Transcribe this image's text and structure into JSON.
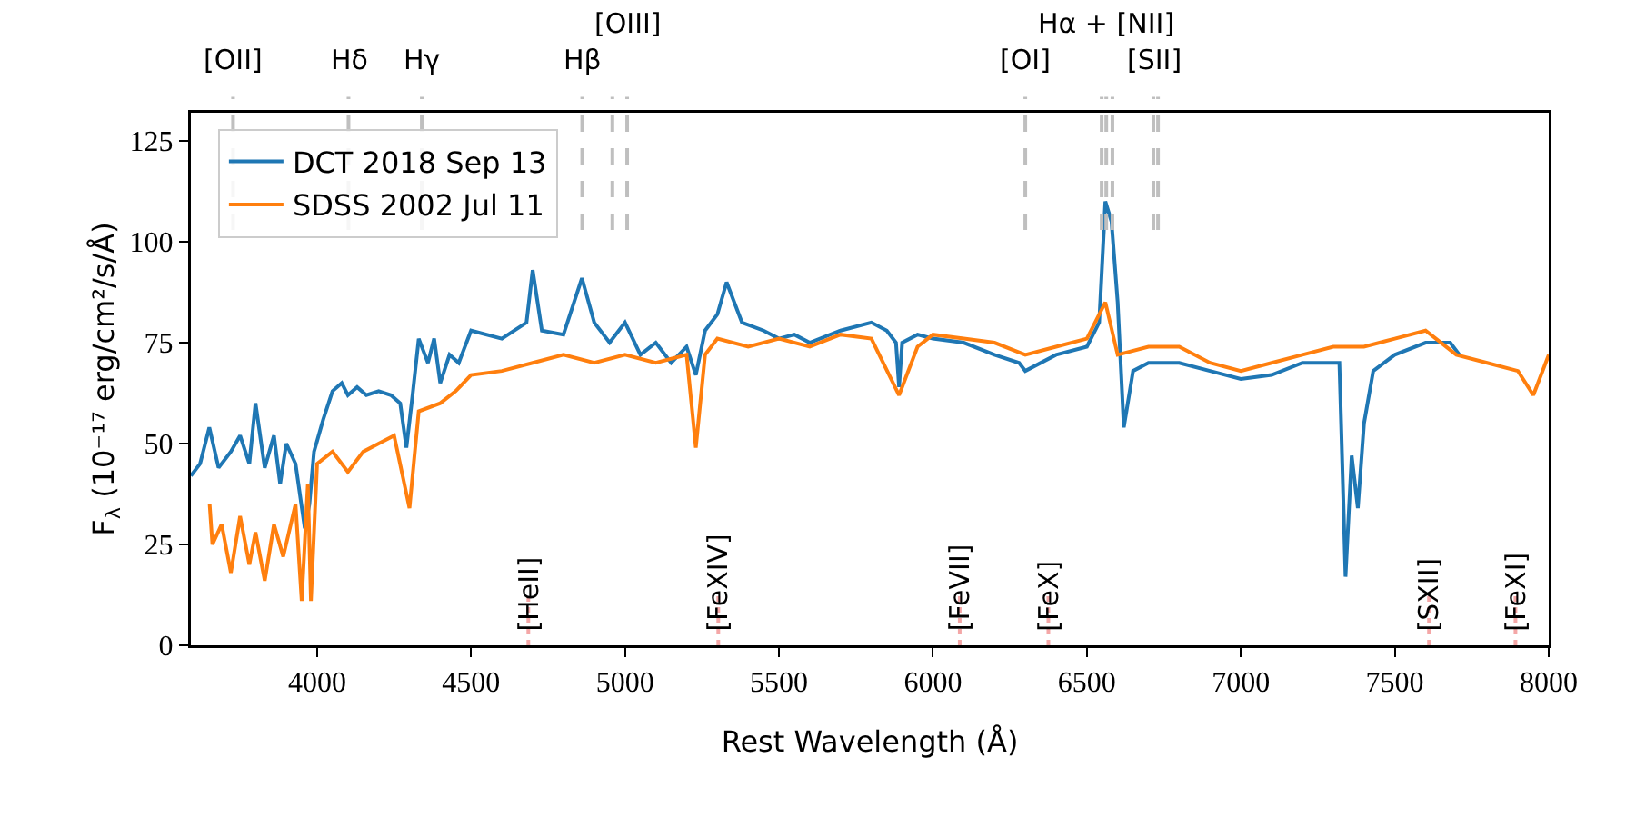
{
  "chart_data": {
    "type": "line",
    "xlabel": "Rest Wavelength (Å)",
    "ylabel": "F$_{λ}$ (10⁻¹⁷ erg/cm²/s/Å)",
    "xlim": [
      3590,
      8000
    ],
    "xticks": [
      4000,
      4500,
      5000,
      5500,
      6000,
      6500,
      7000,
      7500,
      8000
    ],
    "ylim": [
      0,
      132
    ],
    "yticks": [
      0,
      25,
      50,
      75,
      100,
      125
    ],
    "grid": false,
    "legend": "top left",
    "series": [
      {
        "name": "DCT 2018 Sep 13",
        "color": "#1f77b4",
        "x": [
          3590,
          3620,
          3650,
          3680,
          3720,
          3750,
          3780,
          3800,
          3830,
          3860,
          3880,
          3900,
          3930,
          3960,
          3975,
          3990,
          4020,
          4050,
          4080,
          4100,
          4130,
          4160,
          4200,
          4240,
          4270,
          4290,
          4310,
          4330,
          4360,
          4380,
          4400,
          4430,
          4460,
          4500,
          4600,
          4680,
          4700,
          4730,
          4800,
          4860,
          4900,
          4950,
          5000,
          5050,
          5100,
          5150,
          5200,
          5230,
          5260,
          5300,
          5330,
          5380,
          5450,
          5500,
          5550,
          5600,
          5700,
          5800,
          5850,
          5880,
          5890,
          5900,
          5950,
          6000,
          6100,
          6200,
          6280,
          6300,
          6400,
          6500,
          6540,
          6560,
          6580,
          6600,
          6620,
          6650,
          6700,
          6800,
          6900,
          7000,
          7100,
          7200,
          7300,
          7320,
          7340,
          7360,
          7380,
          7400,
          7430,
          7500,
          7600,
          7680,
          7710
        ],
        "values": [
          42,
          45,
          54,
          44,
          48,
          52,
          45,
          60,
          44,
          52,
          40,
          50,
          45,
          29,
          35,
          48,
          56,
          63,
          65,
          62,
          64,
          62,
          63,
          62,
          60,
          49,
          62,
          76,
          70,
          76,
          65,
          72,
          70,
          78,
          76,
          80,
          93,
          78,
          77,
          91,
          80,
          75,
          80,
          72,
          75,
          70,
          74,
          67,
          78,
          82,
          90,
          80,
          78,
          76,
          77,
          75,
          78,
          80,
          78,
          75,
          64,
          75,
          77,
          76,
          75,
          72,
          70,
          68,
          72,
          74,
          80,
          110,
          105,
          85,
          54,
          68,
          70,
          70,
          68,
          66,
          67,
          70,
          70,
          70,
          17,
          47,
          34,
          55,
          68,
          72,
          75,
          75,
          72
        ]
      },
      {
        "name": "SDSS 2002 Jul 11",
        "color": "#ff7f0e",
        "x": [
          3651,
          3660,
          3690,
          3720,
          3750,
          3780,
          3800,
          3830,
          3860,
          3890,
          3930,
          3950,
          3970,
          3980,
          4000,
          4050,
          4100,
          4150,
          4200,
          4250,
          4300,
          4330,
          4400,
          4450,
          4500,
          4600,
          4700,
          4800,
          4900,
          5000,
          5100,
          5200,
          5230,
          5260,
          5300,
          5400,
          5500,
          5600,
          5700,
          5800,
          5890,
          5950,
          6000,
          6100,
          6200,
          6300,
          6400,
          6500,
          6560,
          6600,
          6700,
          6800,
          6900,
          7000,
          7100,
          7200,
          7300,
          7400,
          7500,
          7600,
          7700,
          7800,
          7900,
          7950,
          8000
        ],
        "values": [
          35,
          25,
          30,
          18,
          32,
          20,
          28,
          16,
          30,
          22,
          35,
          11,
          40,
          11,
          45,
          48,
          43,
          48,
          50,
          52,
          34,
          58,
          60,
          63,
          67,
          68,
          70,
          72,
          70,
          72,
          70,
          72,
          49,
          72,
          76,
          74,
          76,
          74,
          77,
          76,
          62,
          74,
          77,
          76,
          75,
          72,
          74,
          76,
          85,
          72,
          74,
          74,
          70,
          68,
          70,
          72,
          74,
          74,
          76,
          78,
          72,
          70,
          68,
          62,
          72
        ]
      }
    ],
    "ref_lines": [
      {
        "axis": "x",
        "value": 3727,
        "label": "[OII]",
        "color": "#bfbfbf",
        "line_style": "dashed"
      },
      {
        "axis": "x",
        "value": 4102,
        "label": "Hδ",
        "color": "#bfbfbf",
        "line_style": "dashed"
      },
      {
        "axis": "x",
        "value": 4340,
        "label": "Hγ",
        "color": "#bfbfbf",
        "line_style": "dashed"
      },
      {
        "axis": "x",
        "value": 4861,
        "label": "Hβ",
        "color": "#bfbfbf",
        "line_style": "dashed"
      },
      {
        "axis": "x",
        "value": 4959,
        "label": null,
        "color": "#bfbfbf",
        "line_style": "dashed"
      },
      {
        "axis": "x",
        "value": 5007,
        "label": "[OIII]",
        "color": "#bfbfbf",
        "line_style": "dashed"
      },
      {
        "axis": "x",
        "value": 6300,
        "label": "[OI]",
        "color": "#bfbfbf",
        "line_style": "dashed"
      },
      {
        "axis": "x",
        "value": 6548,
        "label": null,
        "color": "#bfbfbf",
        "line_style": "dashed"
      },
      {
        "axis": "x",
        "value": 6563,
        "label": "Hα + [NII]",
        "color": "#bfbfbf",
        "line_style": "dashed"
      },
      {
        "axis": "x",
        "value": 6583,
        "label": null,
        "color": "#bfbfbf",
        "line_style": "dashed"
      },
      {
        "axis": "x",
        "value": 6716,
        "label": "[SII]",
        "color": "#bfbfbf",
        "line_style": "dashed"
      },
      {
        "axis": "x",
        "value": 6731,
        "label": null,
        "color": "#bfbfbf",
        "line_style": "dashed"
      },
      {
        "axis": "x",
        "value": 4686,
        "label": "[HeII]",
        "color": "#f4a7a7",
        "line_style": "dotted"
      },
      {
        "axis": "x",
        "value": 5303,
        "label": "[FeXIV]",
        "color": "#f4a7a7",
        "line_style": "dotted"
      },
      {
        "axis": "x",
        "value": 6087,
        "label": "[FeVII]",
        "color": "#f4a7a7",
        "line_style": "dotted"
      },
      {
        "axis": "x",
        "value": 6375,
        "label": "[FeX]",
        "color": "#f4a7a7",
        "line_style": "dotted"
      },
      {
        "axis": "x",
        "value": 7611,
        "label": "[SXII]",
        "color": "#f4a7a7",
        "line_style": "dotted"
      },
      {
        "axis": "x",
        "value": 7892,
        "label": "[FeXI]",
        "color": "#f4a7a7",
        "line_style": "dotted"
      }
    ]
  }
}
